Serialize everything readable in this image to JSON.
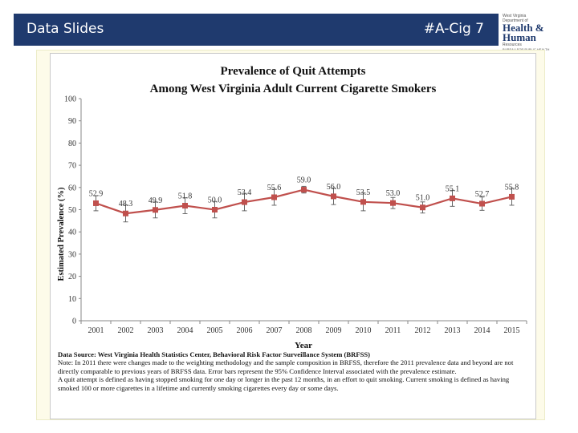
{
  "header": {
    "left_label": "Data Slides",
    "right_label": "#A-Cig 7"
  },
  "logo": {
    "line1": "West Virginia",
    "line2": "Department of",
    "line3": "Health &",
    "line4": "Human",
    "line5": "Resources",
    "line6": "BUREAU FOR PUBLIC HEALTH"
  },
  "colors": {
    "banner": "#1f3a6e",
    "series": "#c0504d",
    "frame": "#fdfbe9"
  },
  "chart_data": {
    "type": "line",
    "title_line1": "Prevalence of Quit Attempts",
    "title_line2": "Among West Virginia Adult Current Cigarette Smokers",
    "xlabel": "Year",
    "ylabel": "Estimated Prevalence (%)",
    "ylim": [
      0,
      100
    ],
    "yticks": [
      0,
      10,
      20,
      30,
      40,
      50,
      60,
      70,
      80,
      90,
      100
    ],
    "grid": false,
    "x": [
      "2001",
      "2002",
      "2003",
      "2004",
      "2005",
      "2006",
      "2007",
      "2008",
      "2009",
      "2010",
      "2011",
      "2012",
      "2013",
      "2014",
      "2015"
    ],
    "values": [
      52.9,
      48.3,
      49.9,
      51.8,
      50.0,
      53.4,
      55.6,
      59.0,
      56.0,
      53.5,
      53.0,
      51.0,
      55.1,
      52.7,
      55.8
    ],
    "value_labels": [
      "52.9",
      "48.3",
      "49.9",
      "51.8",
      "50.0",
      "53.4",
      "55.6",
      "59.0",
      "56.0",
      "53.5",
      "53.0",
      "51.0",
      "55.1",
      "52.7",
      "55.8"
    ],
    "error_low": [
      49.5,
      44.5,
      46.3,
      48.2,
      46.3,
      49.5,
      52.0,
      57.5,
      52.3,
      49.5,
      50.5,
      48.5,
      51.5,
      49.7,
      52.0
    ],
    "error_high": [
      56.3,
      52.1,
      53.5,
      55.4,
      53.7,
      57.3,
      59.2,
      60.5,
      59.7,
      57.5,
      55.5,
      53.5,
      58.7,
      55.7,
      59.6
    ]
  },
  "notes": {
    "source": "Data Source: West Virginia Health Statistics Center, Behavioral Risk Factor Surveillance System (BRFSS)",
    "note": "Note: In 2011 there were changes made to the weighting methodology and the sample composition in BRFSS, therefore the 2011 prevalence data and beyond are not directly comparable to previous years of BRFSS data. Error bars represent the 95% Confidence Interval associated with the prevalence estimate.",
    "definition": "A quit attempt is defined as having stopped smoking for one day or longer in the past 12 months, in an effort to quit smoking. Current smoking is defined as having smoked 100 or more cigarettes in a lifetime and currently smoking cigarettes every day or some days."
  }
}
